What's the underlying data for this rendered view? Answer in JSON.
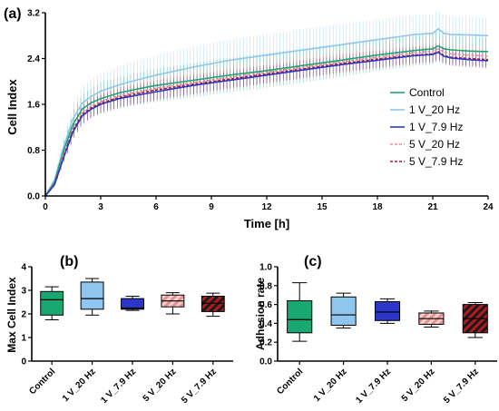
{
  "colors": {
    "control": "#1aa872",
    "v1_20": "#8fc6ef",
    "v1_79": "#2c37c9",
    "v5_20": "#e98d8d",
    "v5_79": "#b3191f",
    "axis": "#000000"
  },
  "chart_data": [
    {
      "panel_label": "(a)",
      "type": "line",
      "xlabel": "Time [h]",
      "ylabel": "Cell Index",
      "xlim": [
        0,
        24
      ],
      "ylim": [
        0,
        3.2
      ],
      "xticks": [
        "0",
        "3",
        "6",
        "9",
        "12",
        "15",
        "18",
        "21",
        "24"
      ],
      "yticks": [
        "0.0",
        "0.8",
        "1.6",
        "2.4",
        "3.2"
      ],
      "legend_position": "right",
      "x": [
        0,
        0.5,
        1,
        1.5,
        2,
        2.5,
        3,
        4,
        5,
        6,
        8,
        10,
        12,
        14,
        16,
        18,
        20,
        21,
        21.3,
        21.6,
        22,
        23,
        24
      ],
      "series": [
        {
          "name": "Control",
          "color_key": "control",
          "values": [
            0,
            0.25,
            0.8,
            1.25,
            1.52,
            1.63,
            1.7,
            1.8,
            1.87,
            1.93,
            2.02,
            2.11,
            2.19,
            2.28,
            2.37,
            2.46,
            2.54,
            2.57,
            2.62,
            2.57,
            2.55,
            2.53,
            2.52
          ],
          "error": [
            0,
            0.05,
            0.15,
            0.22,
            0.25,
            0.26,
            0.27,
            0.28,
            0.28,
            0.29,
            0.3,
            0.3,
            0.3,
            0.3,
            0.29,
            0.28,
            0.27,
            0.27,
            0.27,
            0.26,
            0.26,
            0.25,
            0.25
          ]
        },
        {
          "name": "1 V_20 Hz",
          "color_key": "v1_20",
          "values": [
            0,
            0.28,
            0.87,
            1.35,
            1.62,
            1.74,
            1.83,
            1.94,
            2.03,
            2.11,
            2.25,
            2.37,
            2.46,
            2.55,
            2.64,
            2.73,
            2.82,
            2.84,
            2.92,
            2.84,
            2.82,
            2.81,
            2.8
          ],
          "error": [
            0,
            0.06,
            0.18,
            0.25,
            0.28,
            0.3,
            0.31,
            0.33,
            0.34,
            0.35,
            0.36,
            0.36,
            0.37,
            0.37,
            0.36,
            0.35,
            0.34,
            0.33,
            0.33,
            0.32,
            0.32,
            0.31,
            0.31
          ]
        },
        {
          "name": "1 V_7.9 Hz",
          "color_key": "v1_79",
          "values": [
            0,
            0.2,
            0.68,
            1.12,
            1.4,
            1.52,
            1.6,
            1.7,
            1.76,
            1.82,
            1.93,
            2.02,
            2.11,
            2.2,
            2.29,
            2.37,
            2.45,
            2.47,
            2.51,
            2.44,
            2.41,
            2.38,
            2.36
          ],
          "error": [
            0,
            0.04,
            0.1,
            0.14,
            0.15,
            0.15,
            0.15,
            0.15,
            0.15,
            0.15,
            0.15,
            0.14,
            0.14,
            0.14,
            0.13,
            0.13,
            0.13,
            0.13,
            0.13,
            0.12,
            0.12,
            0.12,
            0.12
          ]
        },
        {
          "name": "5 V_20 Hz",
          "color_key": "v5_20",
          "values": [
            0,
            0.22,
            0.73,
            1.18,
            1.45,
            1.57,
            1.65,
            1.75,
            1.82,
            1.88,
            1.98,
            2.07,
            2.16,
            2.25,
            2.34,
            2.42,
            2.5,
            2.53,
            2.57,
            2.51,
            2.48,
            2.46,
            2.44
          ],
          "error": [
            0,
            0.04,
            0.12,
            0.17,
            0.19,
            0.2,
            0.2,
            0.21,
            0.21,
            0.21,
            0.21,
            0.2,
            0.2,
            0.2,
            0.2,
            0.19,
            0.19,
            0.19,
            0.19,
            0.18,
            0.18,
            0.18,
            0.18
          ]
        },
        {
          "name": "5 V_7.9 Hz",
          "color_key": "v5_79",
          "values": [
            0,
            0.21,
            0.7,
            1.15,
            1.42,
            1.54,
            1.62,
            1.72,
            1.79,
            1.85,
            1.95,
            2.04,
            2.13,
            2.22,
            2.31,
            2.39,
            2.46,
            2.48,
            2.52,
            2.45,
            2.42,
            2.4,
            2.38
          ],
          "error": [
            0,
            0.04,
            0.11,
            0.15,
            0.17,
            0.17,
            0.17,
            0.17,
            0.17,
            0.17,
            0.17,
            0.16,
            0.16,
            0.16,
            0.16,
            0.15,
            0.15,
            0.15,
            0.15,
            0.15,
            0.15,
            0.15,
            0.15
          ]
        }
      ]
    },
    {
      "panel_label": "(b)",
      "type": "box",
      "ylabel": "Max Cell Index",
      "ylim": [
        0,
        4
      ],
      "yticks": [
        "0",
        "1",
        "2",
        "3",
        "4"
      ],
      "categories": [
        "Control",
        "1 V_20 Hz",
        "1 V_7.9 Hz",
        "5 V_20 Hz",
        "5 V_7.9 Hz"
      ],
      "boxes": [
        {
          "min": 1.75,
          "q1": 1.95,
          "median": 2.6,
          "q3": 2.95,
          "max": 3.15,
          "color_key": "control",
          "hatched": false
        },
        {
          "min": 1.95,
          "q1": 2.2,
          "median": 2.65,
          "q3": 3.35,
          "max": 3.5,
          "color_key": "v1_20",
          "hatched": false
        },
        {
          "min": 2.15,
          "q1": 2.2,
          "median": 2.25,
          "q3": 2.65,
          "max": 2.75,
          "color_key": "v1_79",
          "hatched": false
        },
        {
          "min": 2.0,
          "q1": 2.3,
          "median": 2.55,
          "q3": 2.8,
          "max": 2.9,
          "color_key": "v5_20",
          "hatched": true
        },
        {
          "min": 1.9,
          "q1": 2.1,
          "median": 2.45,
          "q3": 2.75,
          "max": 2.88,
          "color_key": "v5_79",
          "hatched": true
        }
      ]
    },
    {
      "panel_label": "(c)",
      "type": "box",
      "ylabel": "Adhesion rate",
      "ylim": [
        0,
        1.0
      ],
      "yticks": [
        "0.0",
        "0.2",
        "0.4",
        "0.6",
        "0.8",
        "1.0"
      ],
      "categories": [
        "Control",
        "1 V_20 Hz",
        "1 V_7.9 Hz",
        "5 V_20 Hz",
        "5 V_7.9 Hz"
      ],
      "boxes": [
        {
          "min": 0.21,
          "q1": 0.3,
          "median": 0.44,
          "q3": 0.64,
          "max": 0.83,
          "color_key": "control",
          "hatched": false
        },
        {
          "min": 0.35,
          "q1": 0.38,
          "median": 0.49,
          "q3": 0.68,
          "max": 0.72,
          "color_key": "v1_20",
          "hatched": false
        },
        {
          "min": 0.4,
          "q1": 0.43,
          "median": 0.52,
          "q3": 0.63,
          "max": 0.66,
          "color_key": "v1_79",
          "hatched": false
        },
        {
          "min": 0.36,
          "q1": 0.39,
          "median": 0.45,
          "q3": 0.51,
          "max": 0.53,
          "color_key": "v5_20",
          "hatched": true
        },
        {
          "min": 0.25,
          "q1": 0.3,
          "median": 0.45,
          "q3": 0.6,
          "max": 0.62,
          "color_key": "v5_79",
          "hatched": true
        }
      ]
    }
  ]
}
